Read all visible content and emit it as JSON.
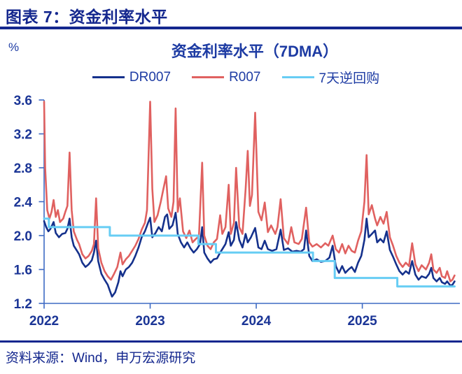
{
  "page": {
    "header_title": "图表 7：资金利率水平",
    "source": "资料来源：Wind，申万宏源研究"
  },
  "chart": {
    "unit": "%"
  },
  "chart_data": {
    "type": "line",
    "title": "资金利率水平（7DMA）",
    "xlabel": "",
    "ylabel": "%",
    "x_unit": "decimal year",
    "ylim": [
      1.2,
      3.6
    ],
    "y_ticks": [
      3.6,
      3.2,
      2.8,
      2.4,
      2.0,
      1.6,
      1.2
    ],
    "xlim": [
      2022.0,
      2025.92
    ],
    "x_ticks": [
      2022,
      2023,
      2024,
      2025
    ],
    "grid": false,
    "legend_position": "top",
    "axis_color": "#3E6BC4",
    "series": [
      {
        "name": "DR007",
        "color": "#15318C",
        "width": 2.6,
        "points": [
          [
            2022.0,
            2.17
          ],
          [
            2022.02,
            2.1
          ],
          [
            2022.04,
            2.05
          ],
          [
            2022.06,
            2.08
          ],
          [
            2022.09,
            2.16
          ],
          [
            2022.11,
            2.03
          ],
          [
            2022.14,
            1.98
          ],
          [
            2022.17,
            2.02
          ],
          [
            2022.2,
            2.03
          ],
          [
            2022.22,
            2.08
          ],
          [
            2022.24,
            2.2
          ],
          [
            2022.26,
            1.98
          ],
          [
            2022.28,
            1.88
          ],
          [
            2022.31,
            1.82
          ],
          [
            2022.33,
            1.78
          ],
          [
            2022.36,
            1.68
          ],
          [
            2022.39,
            1.63
          ],
          [
            2022.42,
            1.66
          ],
          [
            2022.45,
            1.71
          ],
          [
            2022.47,
            1.8
          ],
          [
            2022.49,
            1.94
          ],
          [
            2022.51,
            1.7
          ],
          [
            2022.54,
            1.55
          ],
          [
            2022.57,
            1.48
          ],
          [
            2022.6,
            1.42
          ],
          [
            2022.62,
            1.35
          ],
          [
            2022.64,
            1.28
          ],
          [
            2022.67,
            1.33
          ],
          [
            2022.7,
            1.45
          ],
          [
            2022.72,
            1.58
          ],
          [
            2022.74,
            1.52
          ],
          [
            2022.77,
            1.6
          ],
          [
            2022.8,
            1.63
          ],
          [
            2022.83,
            1.68
          ],
          [
            2022.86,
            1.76
          ],
          [
            2022.89,
            1.86
          ],
          [
            2022.92,
            1.98
          ],
          [
            2022.95,
            2.05
          ],
          [
            2022.98,
            2.15
          ],
          [
            2023.0,
            2.21
          ],
          [
            2023.02,
            1.98
          ],
          [
            2023.05,
            2.03
          ],
          [
            2023.08,
            2.1
          ],
          [
            2023.11,
            2.05
          ],
          [
            2023.14,
            2.22
          ],
          [
            2023.16,
            2.25
          ],
          [
            2023.18,
            2.08
          ],
          [
            2023.21,
            2.12
          ],
          [
            2023.24,
            2.27
          ],
          [
            2023.26,
            2.02
          ],
          [
            2023.29,
            1.92
          ],
          [
            2023.32,
            1.86
          ],
          [
            2023.35,
            1.92
          ],
          [
            2023.38,
            1.85
          ],
          [
            2023.41,
            1.8
          ],
          [
            2023.44,
            1.84
          ],
          [
            2023.47,
            1.9
          ],
          [
            2023.49,
            2.1
          ],
          [
            2023.51,
            1.8
          ],
          [
            2023.54,
            1.73
          ],
          [
            2023.57,
            1.68
          ],
          [
            2023.6,
            1.72
          ],
          [
            2023.63,
            1.73
          ],
          [
            2023.66,
            1.8
          ],
          [
            2023.69,
            1.86
          ],
          [
            2023.71,
            1.9
          ],
          [
            2023.74,
            2.04
          ],
          [
            2023.76,
            1.88
          ],
          [
            2023.79,
            1.95
          ],
          [
            2023.81,
            2.16
          ],
          [
            2023.84,
            1.95
          ],
          [
            2023.87,
            1.86
          ],
          [
            2023.9,
            2.02
          ],
          [
            2023.92,
            1.92
          ],
          [
            2023.95,
            1.98
          ],
          [
            2023.99,
            2.09
          ],
          [
            2024.02,
            1.86
          ],
          [
            2024.05,
            1.84
          ],
          [
            2024.08,
            1.94
          ],
          [
            2024.11,
            1.84
          ],
          [
            2024.15,
            1.82
          ],
          [
            2024.19,
            1.84
          ],
          [
            2024.23,
            2.07
          ],
          [
            2024.26,
            1.83
          ],
          [
            2024.3,
            1.85
          ],
          [
            2024.34,
            1.81
          ],
          [
            2024.38,
            1.82
          ],
          [
            2024.42,
            1.81
          ],
          [
            2024.45,
            1.84
          ],
          [
            2024.47,
            2.06
          ],
          [
            2024.5,
            1.76
          ],
          [
            2024.53,
            1.7
          ],
          [
            2024.57,
            1.72
          ],
          [
            2024.61,
            1.69
          ],
          [
            2024.65,
            1.7
          ],
          [
            2024.69,
            1.74
          ],
          [
            2024.72,
            1.88
          ],
          [
            2024.75,
            1.64
          ],
          [
            2024.78,
            1.56
          ],
          [
            2024.81,
            1.64
          ],
          [
            2024.84,
            1.56
          ],
          [
            2024.87,
            1.6
          ],
          [
            2024.9,
            1.63
          ],
          [
            2024.93,
            1.57
          ],
          [
            2024.96,
            1.68
          ],
          [
            2024.99,
            1.76
          ],
          [
            2025.02,
            1.95
          ],
          [
            2025.04,
            2.2
          ],
          [
            2025.06,
            1.98
          ],
          [
            2025.09,
            2.02
          ],
          [
            2025.12,
            2.06
          ],
          [
            2025.14,
            1.92
          ],
          [
            2025.17,
            1.96
          ],
          [
            2025.2,
            1.92
          ],
          [
            2025.23,
            2.05
          ],
          [
            2025.26,
            1.83
          ],
          [
            2025.29,
            1.75
          ],
          [
            2025.32,
            1.66
          ],
          [
            2025.35,
            1.58
          ],
          [
            2025.38,
            1.54
          ],
          [
            2025.41,
            1.58
          ],
          [
            2025.44,
            1.55
          ],
          [
            2025.47,
            1.7
          ],
          [
            2025.5,
            1.54
          ],
          [
            2025.53,
            1.48
          ],
          [
            2025.56,
            1.52
          ],
          [
            2025.6,
            1.5
          ],
          [
            2025.63,
            1.55
          ],
          [
            2025.65,
            1.62
          ],
          [
            2025.67,
            1.5
          ],
          [
            2025.7,
            1.46
          ],
          [
            2025.73,
            1.5
          ],
          [
            2025.75,
            1.45
          ],
          [
            2025.78,
            1.43
          ],
          [
            2025.8,
            1.46
          ],
          [
            2025.83,
            1.41
          ],
          [
            2025.85,
            1.42
          ],
          [
            2025.87,
            1.46
          ]
        ]
      },
      {
        "name": "R007",
        "color": "#E06160",
        "width": 2.6,
        "points": [
          [
            2022.0,
            3.58
          ],
          [
            2022.01,
            2.8
          ],
          [
            2022.03,
            2.3
          ],
          [
            2022.05,
            2.2
          ],
          [
            2022.07,
            2.28
          ],
          [
            2022.09,
            2.42
          ],
          [
            2022.11,
            2.22
          ],
          [
            2022.13,
            2.3
          ],
          [
            2022.15,
            2.16
          ],
          [
            2022.18,
            2.2
          ],
          [
            2022.2,
            2.28
          ],
          [
            2022.22,
            2.35
          ],
          [
            2022.24,
            2.98
          ],
          [
            2022.26,
            2.3
          ],
          [
            2022.28,
            2.05
          ],
          [
            2022.31,
            1.95
          ],
          [
            2022.33,
            1.9
          ],
          [
            2022.36,
            1.78
          ],
          [
            2022.39,
            1.73
          ],
          [
            2022.42,
            1.76
          ],
          [
            2022.45,
            1.82
          ],
          [
            2022.47,
            1.9
          ],
          [
            2022.49,
            2.44
          ],
          [
            2022.51,
            1.85
          ],
          [
            2022.54,
            1.68
          ],
          [
            2022.57,
            1.58
          ],
          [
            2022.6,
            1.52
          ],
          [
            2022.63,
            1.48
          ],
          [
            2022.66,
            1.55
          ],
          [
            2022.69,
            1.63
          ],
          [
            2022.72,
            1.8
          ],
          [
            2022.74,
            1.66
          ],
          [
            2022.77,
            1.72
          ],
          [
            2022.8,
            1.76
          ],
          [
            2022.83,
            1.82
          ],
          [
            2022.86,
            1.88
          ],
          [
            2022.89,
            1.96
          ],
          [
            2022.92,
            2.07
          ],
          [
            2022.95,
            2.15
          ],
          [
            2022.97,
            2.3
          ],
          [
            2023.0,
            3.58
          ],
          [
            2023.02,
            2.55
          ],
          [
            2023.04,
            2.16
          ],
          [
            2023.07,
            2.24
          ],
          [
            2023.1,
            2.4
          ],
          [
            2023.12,
            2.52
          ],
          [
            2023.15,
            2.7
          ],
          [
            2023.17,
            2.32
          ],
          [
            2023.2,
            2.22
          ],
          [
            2023.22,
            2.4
          ],
          [
            2023.24,
            3.5
          ],
          [
            2023.26,
            2.28
          ],
          [
            2023.28,
            2.44
          ],
          [
            2023.31,
            2.05
          ],
          [
            2023.34,
            1.97
          ],
          [
            2023.37,
            2.06
          ],
          [
            2023.4,
            1.92
          ],
          [
            2023.43,
            1.96
          ],
          [
            2023.46,
            1.99
          ],
          [
            2023.49,
            2.86
          ],
          [
            2023.51,
            2.0
          ],
          [
            2023.54,
            1.88
          ],
          [
            2023.57,
            1.84
          ],
          [
            2023.6,
            1.92
          ],
          [
            2023.63,
            1.96
          ],
          [
            2023.66,
            2.24
          ],
          [
            2023.68,
            2.02
          ],
          [
            2023.71,
            2.1
          ],
          [
            2023.74,
            2.6
          ],
          [
            2023.76,
            2.02
          ],
          [
            2023.79,
            2.15
          ],
          [
            2023.81,
            2.8
          ],
          [
            2023.84,
            2.1
          ],
          [
            2023.87,
            2.02
          ],
          [
            2023.9,
            2.55
          ],
          [
            2023.92,
            3.0
          ],
          [
            2023.94,
            2.35
          ],
          [
            2023.96,
            2.48
          ],
          [
            2023.99,
            3.45
          ],
          [
            2024.02,
            2.28
          ],
          [
            2024.05,
            2.18
          ],
          [
            2024.08,
            2.39
          ],
          [
            2024.11,
            2.04
          ],
          [
            2024.14,
            2.12
          ],
          [
            2024.18,
            2.02
          ],
          [
            2024.2,
            2.1
          ],
          [
            2024.23,
            2.43
          ],
          [
            2024.26,
            1.97
          ],
          [
            2024.3,
            1.9
          ],
          [
            2024.33,
            2.1
          ],
          [
            2024.36,
            1.92
          ],
          [
            2024.4,
            1.9
          ],
          [
            2024.43,
            1.96
          ],
          [
            2024.47,
            2.33
          ],
          [
            2024.5,
            1.92
          ],
          [
            2024.53,
            1.87
          ],
          [
            2024.57,
            1.9
          ],
          [
            2024.61,
            1.86
          ],
          [
            2024.65,
            1.91
          ],
          [
            2024.68,
            1.88
          ],
          [
            2024.72,
            2.0
          ],
          [
            2024.75,
            1.84
          ],
          [
            2024.78,
            1.8
          ],
          [
            2024.81,
            1.9
          ],
          [
            2024.84,
            1.79
          ],
          [
            2024.87,
            1.88
          ],
          [
            2024.9,
            1.82
          ],
          [
            2024.93,
            1.8
          ],
          [
            2024.96,
            1.94
          ],
          [
            2024.99,
            2.05
          ],
          [
            2025.02,
            2.4
          ],
          [
            2025.04,
            2.95
          ],
          [
            2025.06,
            2.25
          ],
          [
            2025.09,
            2.36
          ],
          [
            2025.12,
            2.2
          ],
          [
            2025.14,
            2.12
          ],
          [
            2025.17,
            2.22
          ],
          [
            2025.2,
            2.14
          ],
          [
            2025.23,
            2.28
          ],
          [
            2025.26,
            1.98
          ],
          [
            2025.29,
            1.88
          ],
          [
            2025.32,
            1.76
          ],
          [
            2025.35,
            1.68
          ],
          [
            2025.38,
            1.63
          ],
          [
            2025.41,
            1.68
          ],
          [
            2025.44,
            1.64
          ],
          [
            2025.47,
            1.91
          ],
          [
            2025.5,
            1.66
          ],
          [
            2025.53,
            1.58
          ],
          [
            2025.56,
            1.65
          ],
          [
            2025.6,
            1.6
          ],
          [
            2025.63,
            1.68
          ],
          [
            2025.65,
            1.78
          ],
          [
            2025.67,
            1.6
          ],
          [
            2025.7,
            1.56
          ],
          [
            2025.73,
            1.62
          ],
          [
            2025.75,
            1.52
          ],
          [
            2025.78,
            1.5
          ],
          [
            2025.8,
            1.58
          ],
          [
            2025.83,
            1.46
          ],
          [
            2025.85,
            1.48
          ],
          [
            2025.87,
            1.53
          ]
        ]
      },
      {
        "name": "7天逆回购",
        "color": "#67CDF4",
        "width": 3,
        "style": "step",
        "points": [
          [
            2022.0,
            2.2
          ],
          [
            2022.045,
            2.2
          ],
          [
            2022.045,
            2.1
          ],
          [
            2022.62,
            2.1
          ],
          [
            2022.62,
            2.0
          ],
          [
            2023.455,
            2.0
          ],
          [
            2023.455,
            1.9
          ],
          [
            2023.62,
            1.9
          ],
          [
            2023.62,
            1.8
          ],
          [
            2024.535,
            1.8
          ],
          [
            2024.535,
            1.7
          ],
          [
            2024.74,
            1.7
          ],
          [
            2024.74,
            1.5
          ],
          [
            2025.33,
            1.5
          ],
          [
            2025.33,
            1.4
          ],
          [
            2025.87,
            1.4
          ]
        ]
      }
    ]
  }
}
